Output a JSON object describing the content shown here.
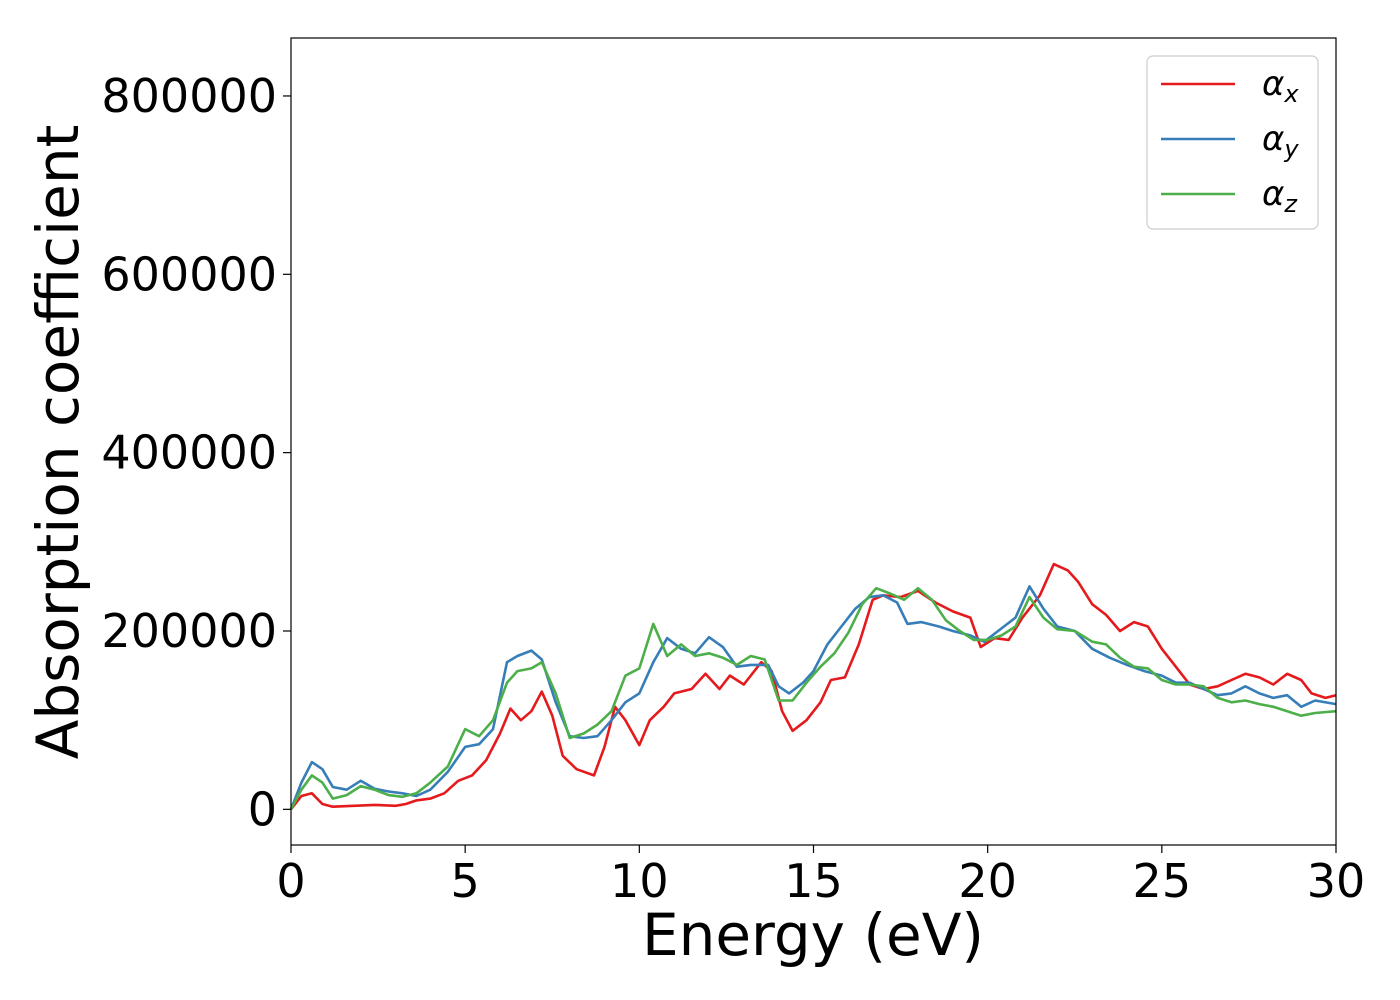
{
  "chart_data": {
    "type": "line",
    "xlabel": "Energy (eV)",
    "ylabel": "Absorption coefficient",
    "xlim": [
      0,
      30
    ],
    "ylim": [
      -40000,
      865000
    ],
    "xticks": [
      "0",
      "5",
      "10",
      "15",
      "20",
      "25",
      "30"
    ],
    "yticks": [
      "0",
      "200000",
      "400000",
      "600000",
      "800000"
    ],
    "grid": false,
    "legend": "top-right",
    "series": [
      {
        "name": "α",
        "subscript": "x",
        "color": "#e41a1c",
        "points": [
          [
            0,
            0
          ],
          [
            0.3,
            15000
          ],
          [
            0.6,
            18000
          ],
          [
            0.9,
            6000
          ],
          [
            1.2,
            3000
          ],
          [
            1.8,
            4000
          ],
          [
            2.4,
            5000
          ],
          [
            3.0,
            4000
          ],
          [
            3.3,
            6000
          ],
          [
            3.6,
            10000
          ],
          [
            4.0,
            12000
          ],
          [
            4.4,
            18000
          ],
          [
            4.8,
            32000
          ],
          [
            5.2,
            38000
          ],
          [
            5.6,
            55000
          ],
          [
            6.0,
            85000
          ],
          [
            6.3,
            113000
          ],
          [
            6.6,
            100000
          ],
          [
            6.9,
            110000
          ],
          [
            7.2,
            132000
          ],
          [
            7.5,
            105000
          ],
          [
            7.8,
            60000
          ],
          [
            8.2,
            45000
          ],
          [
            8.7,
            38000
          ],
          [
            9.0,
            70000
          ],
          [
            9.3,
            115000
          ],
          [
            9.6,
            100000
          ],
          [
            10.0,
            72000
          ],
          [
            10.3,
            100000
          ],
          [
            10.7,
            115000
          ],
          [
            11.0,
            130000
          ],
          [
            11.5,
            135000
          ],
          [
            11.9,
            152000
          ],
          [
            12.3,
            135000
          ],
          [
            12.6,
            150000
          ],
          [
            13.0,
            140000
          ],
          [
            13.5,
            165000
          ],
          [
            13.8,
            155000
          ],
          [
            14.1,
            110000
          ],
          [
            14.4,
            88000
          ],
          [
            14.8,
            100000
          ],
          [
            15.2,
            120000
          ],
          [
            15.5,
            145000
          ],
          [
            15.9,
            148000
          ],
          [
            16.3,
            185000
          ],
          [
            16.7,
            235000
          ],
          [
            17.0,
            240000
          ],
          [
            17.5,
            238000
          ],
          [
            18.0,
            245000
          ],
          [
            18.5,
            232000
          ],
          [
            19.0,
            222000
          ],
          [
            19.5,
            215000
          ],
          [
            19.8,
            182000
          ],
          [
            20.2,
            192000
          ],
          [
            20.6,
            190000
          ],
          [
            21.0,
            215000
          ],
          [
            21.5,
            240000
          ],
          [
            21.9,
            275000
          ],
          [
            22.3,
            268000
          ],
          [
            22.6,
            255000
          ],
          [
            23.0,
            230000
          ],
          [
            23.4,
            218000
          ],
          [
            23.8,
            200000
          ],
          [
            24.2,
            210000
          ],
          [
            24.6,
            205000
          ],
          [
            25.0,
            180000
          ],
          [
            25.4,
            160000
          ],
          [
            25.8,
            140000
          ],
          [
            26.2,
            135000
          ],
          [
            26.6,
            138000
          ],
          [
            27.0,
            145000
          ],
          [
            27.4,
            152000
          ],
          [
            27.8,
            148000
          ],
          [
            28.2,
            140000
          ],
          [
            28.6,
            152000
          ],
          [
            29.0,
            145000
          ],
          [
            29.3,
            130000
          ],
          [
            29.7,
            125000
          ],
          [
            30.0,
            128000
          ]
        ]
      },
      {
        "name": "α",
        "subscript": "y",
        "color": "#377eb8",
        "points": [
          [
            0,
            0
          ],
          [
            0.3,
            30000
          ],
          [
            0.6,
            53000
          ],
          [
            0.9,
            45000
          ],
          [
            1.2,
            25000
          ],
          [
            1.6,
            22000
          ],
          [
            2.0,
            32000
          ],
          [
            2.4,
            23000
          ],
          [
            2.8,
            20000
          ],
          [
            3.2,
            18000
          ],
          [
            3.6,
            15000
          ],
          [
            4.0,
            22000
          ],
          [
            4.5,
            42000
          ],
          [
            5.0,
            70000
          ],
          [
            5.4,
            73000
          ],
          [
            5.8,
            90000
          ],
          [
            6.2,
            165000
          ],
          [
            6.5,
            172000
          ],
          [
            6.9,
            178000
          ],
          [
            7.2,
            168000
          ],
          [
            7.6,
            120000
          ],
          [
            8.0,
            82000
          ],
          [
            8.4,
            80000
          ],
          [
            8.8,
            82000
          ],
          [
            9.2,
            100000
          ],
          [
            9.6,
            120000
          ],
          [
            10.0,
            130000
          ],
          [
            10.4,
            165000
          ],
          [
            10.8,
            192000
          ],
          [
            11.2,
            180000
          ],
          [
            11.6,
            175000
          ],
          [
            12.0,
            193000
          ],
          [
            12.4,
            182000
          ],
          [
            12.8,
            160000
          ],
          [
            13.2,
            162000
          ],
          [
            13.7,
            162000
          ],
          [
            14.0,
            138000
          ],
          [
            14.3,
            130000
          ],
          [
            14.7,
            142000
          ],
          [
            15.0,
            155000
          ],
          [
            15.4,
            185000
          ],
          [
            15.8,
            205000
          ],
          [
            16.2,
            225000
          ],
          [
            16.6,
            238000
          ],
          [
            17.0,
            240000
          ],
          [
            17.4,
            232000
          ],
          [
            17.7,
            208000
          ],
          [
            18.1,
            210000
          ],
          [
            18.6,
            205000
          ],
          [
            19.0,
            200000
          ],
          [
            19.5,
            195000
          ],
          [
            19.9,
            188000
          ],
          [
            20.3,
            200000
          ],
          [
            20.8,
            215000
          ],
          [
            21.2,
            250000
          ],
          [
            21.6,
            225000
          ],
          [
            22.0,
            205000
          ],
          [
            22.5,
            200000
          ],
          [
            23.0,
            180000
          ],
          [
            23.5,
            170000
          ],
          [
            24.0,
            162000
          ],
          [
            24.5,
            155000
          ],
          [
            25.0,
            150000
          ],
          [
            25.4,
            142000
          ],
          [
            25.8,
            142000
          ],
          [
            26.2,
            135000
          ],
          [
            26.6,
            128000
          ],
          [
            27.0,
            130000
          ],
          [
            27.4,
            138000
          ],
          [
            27.8,
            130000
          ],
          [
            28.2,
            125000
          ],
          [
            28.6,
            128000
          ],
          [
            29.0,
            115000
          ],
          [
            29.4,
            122000
          ],
          [
            30.0,
            118000
          ]
        ]
      },
      {
        "name": "α",
        "subscript": "z",
        "color": "#4daf4a",
        "points": [
          [
            0,
            0
          ],
          [
            0.3,
            22000
          ],
          [
            0.6,
            38000
          ],
          [
            0.9,
            30000
          ],
          [
            1.2,
            12000
          ],
          [
            1.6,
            16000
          ],
          [
            2.0,
            26000
          ],
          [
            2.4,
            22000
          ],
          [
            2.8,
            16000
          ],
          [
            3.2,
            14000
          ],
          [
            3.6,
            18000
          ],
          [
            4.0,
            30000
          ],
          [
            4.5,
            48000
          ],
          [
            5.0,
            90000
          ],
          [
            5.4,
            82000
          ],
          [
            5.8,
            100000
          ],
          [
            6.2,
            142000
          ],
          [
            6.5,
            155000
          ],
          [
            6.9,
            158000
          ],
          [
            7.2,
            165000
          ],
          [
            7.6,
            130000
          ],
          [
            8.0,
            80000
          ],
          [
            8.4,
            85000
          ],
          [
            8.8,
            95000
          ],
          [
            9.2,
            110000
          ],
          [
            9.6,
            150000
          ],
          [
            10.0,
            158000
          ],
          [
            10.4,
            208000
          ],
          [
            10.8,
            172000
          ],
          [
            11.2,
            185000
          ],
          [
            11.6,
            172000
          ],
          [
            12.0,
            175000
          ],
          [
            12.4,
            170000
          ],
          [
            12.8,
            162000
          ],
          [
            13.2,
            172000
          ],
          [
            13.6,
            168000
          ],
          [
            14.0,
            122000
          ],
          [
            14.4,
            122000
          ],
          [
            14.8,
            142000
          ],
          [
            15.2,
            160000
          ],
          [
            15.6,
            175000
          ],
          [
            16.0,
            198000
          ],
          [
            16.4,
            230000
          ],
          [
            16.8,
            248000
          ],
          [
            17.2,
            242000
          ],
          [
            17.6,
            235000
          ],
          [
            18.0,
            248000
          ],
          [
            18.4,
            235000
          ],
          [
            18.8,
            212000
          ],
          [
            19.2,
            200000
          ],
          [
            19.6,
            190000
          ],
          [
            20.0,
            190000
          ],
          [
            20.4,
            195000
          ],
          [
            20.8,
            205000
          ],
          [
            21.2,
            238000
          ],
          [
            21.6,
            215000
          ],
          [
            22.0,
            202000
          ],
          [
            22.5,
            200000
          ],
          [
            23.0,
            188000
          ],
          [
            23.4,
            185000
          ],
          [
            23.8,
            170000
          ],
          [
            24.2,
            160000
          ],
          [
            24.6,
            158000
          ],
          [
            25.0,
            145000
          ],
          [
            25.4,
            140000
          ],
          [
            25.8,
            140000
          ],
          [
            26.2,
            138000
          ],
          [
            26.6,
            125000
          ],
          [
            27.0,
            120000
          ],
          [
            27.4,
            122000
          ],
          [
            27.8,
            118000
          ],
          [
            28.2,
            115000
          ],
          [
            28.6,
            110000
          ],
          [
            29.0,
            105000
          ],
          [
            29.4,
            108000
          ],
          [
            30.0,
            110000
          ]
        ]
      }
    ]
  }
}
